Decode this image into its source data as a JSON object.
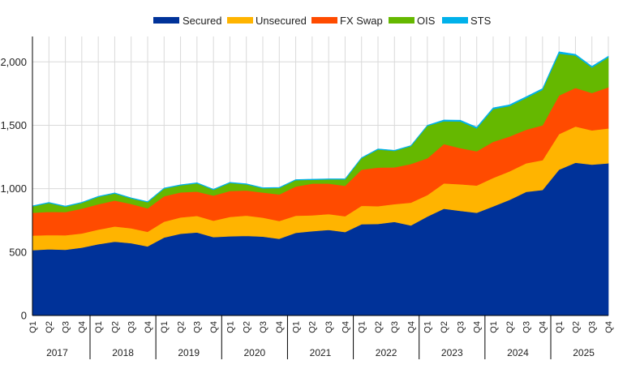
{
  "chart_data": {
    "type": "area",
    "stacked": true,
    "legend_position": "top",
    "grid": true,
    "ylim": [
      0,
      2200
    ],
    "y_ticks": [
      0,
      500,
      1000,
      1500,
      2000
    ],
    "y_tick_labels": [
      "0",
      "500",
      "1,000",
      "1,500",
      "2,000"
    ],
    "x": [
      "2017 Q1",
      "2017 Q2",
      "2017 Q3",
      "2017 Q4",
      "2018 Q1",
      "2018 Q2",
      "2018 Q3",
      "2018 Q4",
      "2019 Q1",
      "2019 Q2",
      "2019 Q3",
      "2019 Q4",
      "2020 Q1",
      "2020 Q2",
      "2020 Q3",
      "2020 Q4",
      "2021 Q1",
      "2021 Q2",
      "2021 Q3",
      "2021 Q4",
      "2022 Q1",
      "2022 Q2",
      "2022 Q3",
      "2022 Q4",
      "2023 Q1",
      "2023 Q2",
      "2023 Q3",
      "2023 Q4",
      "2024 Q1",
      "2024 Q2",
      "2024 Q3",
      "2024 Q4",
      "2025 Q1",
      "2025 Q2",
      "2025 Q3",
      "2025 Q4"
    ],
    "quarter_labels": [
      "Q1",
      "Q2",
      "Q3",
      "Q4",
      "Q1",
      "Q2",
      "Q3",
      "Q4",
      "Q1",
      "Q2",
      "Q3",
      "Q4",
      "Q1",
      "Q2",
      "Q3",
      "Q4",
      "Q1",
      "Q2",
      "Q3",
      "Q4",
      "Q1",
      "Q2",
      "Q3",
      "Q4",
      "Q1",
      "Q2",
      "Q3",
      "Q4",
      "Q1",
      "Q2",
      "Q3",
      "Q4",
      "Q1",
      "Q2",
      "Q3",
      "Q4"
    ],
    "years": [
      "2017",
      "2018",
      "2019",
      "2020",
      "2021",
      "2022",
      "2023",
      "2024",
      "2025"
    ],
    "series": [
      {
        "name": "Secured",
        "color": "#003299",
        "values": [
          515,
          522,
          518,
          535,
          562,
          582,
          570,
          545,
          615,
          645,
          655,
          618,
          625,
          628,
          622,
          605,
          652,
          665,
          675,
          658,
          720,
          722,
          738,
          710,
          780,
          842,
          825,
          810,
          860,
          912,
          975,
          990,
          1150,
          1205,
          1190,
          1200
        ]
      },
      {
        "name": "Unsecured",
        "color": "#FFB400",
        "values": [
          115,
          112,
          115,
          112,
          115,
          120,
          118,
          115,
          125,
          128,
          130,
          130,
          152,
          160,
          150,
          140,
          135,
          125,
          125,
          125,
          145,
          140,
          140,
          180,
          170,
          200,
          210,
          215,
          225,
          225,
          225,
          235,
          280,
          285,
          270,
          275
        ]
      },
      {
        "name": "FX Swap",
        "color": "#FF4B00",
        "values": [
          180,
          183,
          183,
          196,
          200,
          205,
          192,
          185,
          200,
          198,
          192,
          198,
          205,
          198,
          198,
          210,
          230,
          250,
          240,
          240,
          285,
          305,
          290,
          305,
          290,
          310,
          285,
          270,
          285,
          275,
          265,
          275,
          305,
          305,
          295,
          325
        ]
      },
      {
        "name": "OIS",
        "color": "#65B800",
        "values": [
          50,
          70,
          42,
          45,
          58,
          55,
          43,
          48,
          60,
          55,
          65,
          45,
          63,
          48,
          33,
          50,
          50,
          30,
          33,
          50,
          90,
          142,
          130,
          140,
          255,
          180,
          210,
          180,
          258,
          240,
          250,
          280,
          330,
          255,
          200,
          235
        ]
      },
      {
        "name": "STS",
        "color": "#00B1EA",
        "values": [
          5,
          5,
          5,
          5,
          5,
          5,
          5,
          5,
          5,
          5,
          5,
          5,
          5,
          5,
          5,
          5,
          5,
          5,
          5,
          5,
          5,
          5,
          5,
          5,
          5,
          10,
          10,
          10,
          10,
          10,
          10,
          10,
          15,
          10,
          10,
          10
        ]
      }
    ]
  }
}
